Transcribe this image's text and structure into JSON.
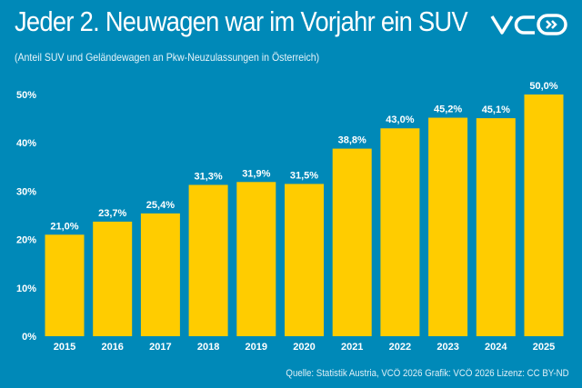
{
  "header": {
    "title": "Jeder 2. Neuwagen war im Vorjahr ein SUV",
    "subtitle": "(Anteil SUV und Geländewagen an Pkw-Neuzulassungen in Österreich)",
    "logo_text": "VCÖ"
  },
  "footer": {
    "source": "Quelle: Statistik Austria, VCÖ 2026 Grafik: VCÖ 2026 Lizenz: CC BY-ND"
  },
  "colors": {
    "background": "#0089b8",
    "bar": "#ffcc00",
    "text": "#ffffff"
  },
  "chart_data": {
    "type": "bar",
    "title": "Jeder 2. Neuwagen war im Vorjahr ein SUV",
    "subtitle": "(Anteil SUV und Geländewagen an Pkw-Neuzulassungen in Österreich)",
    "categories": [
      "2015",
      "2016",
      "2017",
      "2018",
      "2019",
      "2020",
      "2021",
      "2022",
      "2023",
      "2024",
      "2025"
    ],
    "values": [
      21.0,
      23.7,
      25.4,
      31.3,
      31.9,
      31.5,
      38.8,
      43.0,
      45.2,
      45.1,
      50.0
    ],
    "data_labels": [
      "21,0%",
      "23,7%",
      "25,4%",
      "31,3%",
      "31,9%",
      "31,5%",
      "38,8%",
      "43,0%",
      "45,2%",
      "45,1%",
      "50,0%"
    ],
    "yticks": [
      "0%",
      "10%",
      "20%",
      "30%",
      "40%",
      "50%"
    ],
    "ylim": [
      0,
      50
    ],
    "grid": false,
    "legend": "none"
  }
}
